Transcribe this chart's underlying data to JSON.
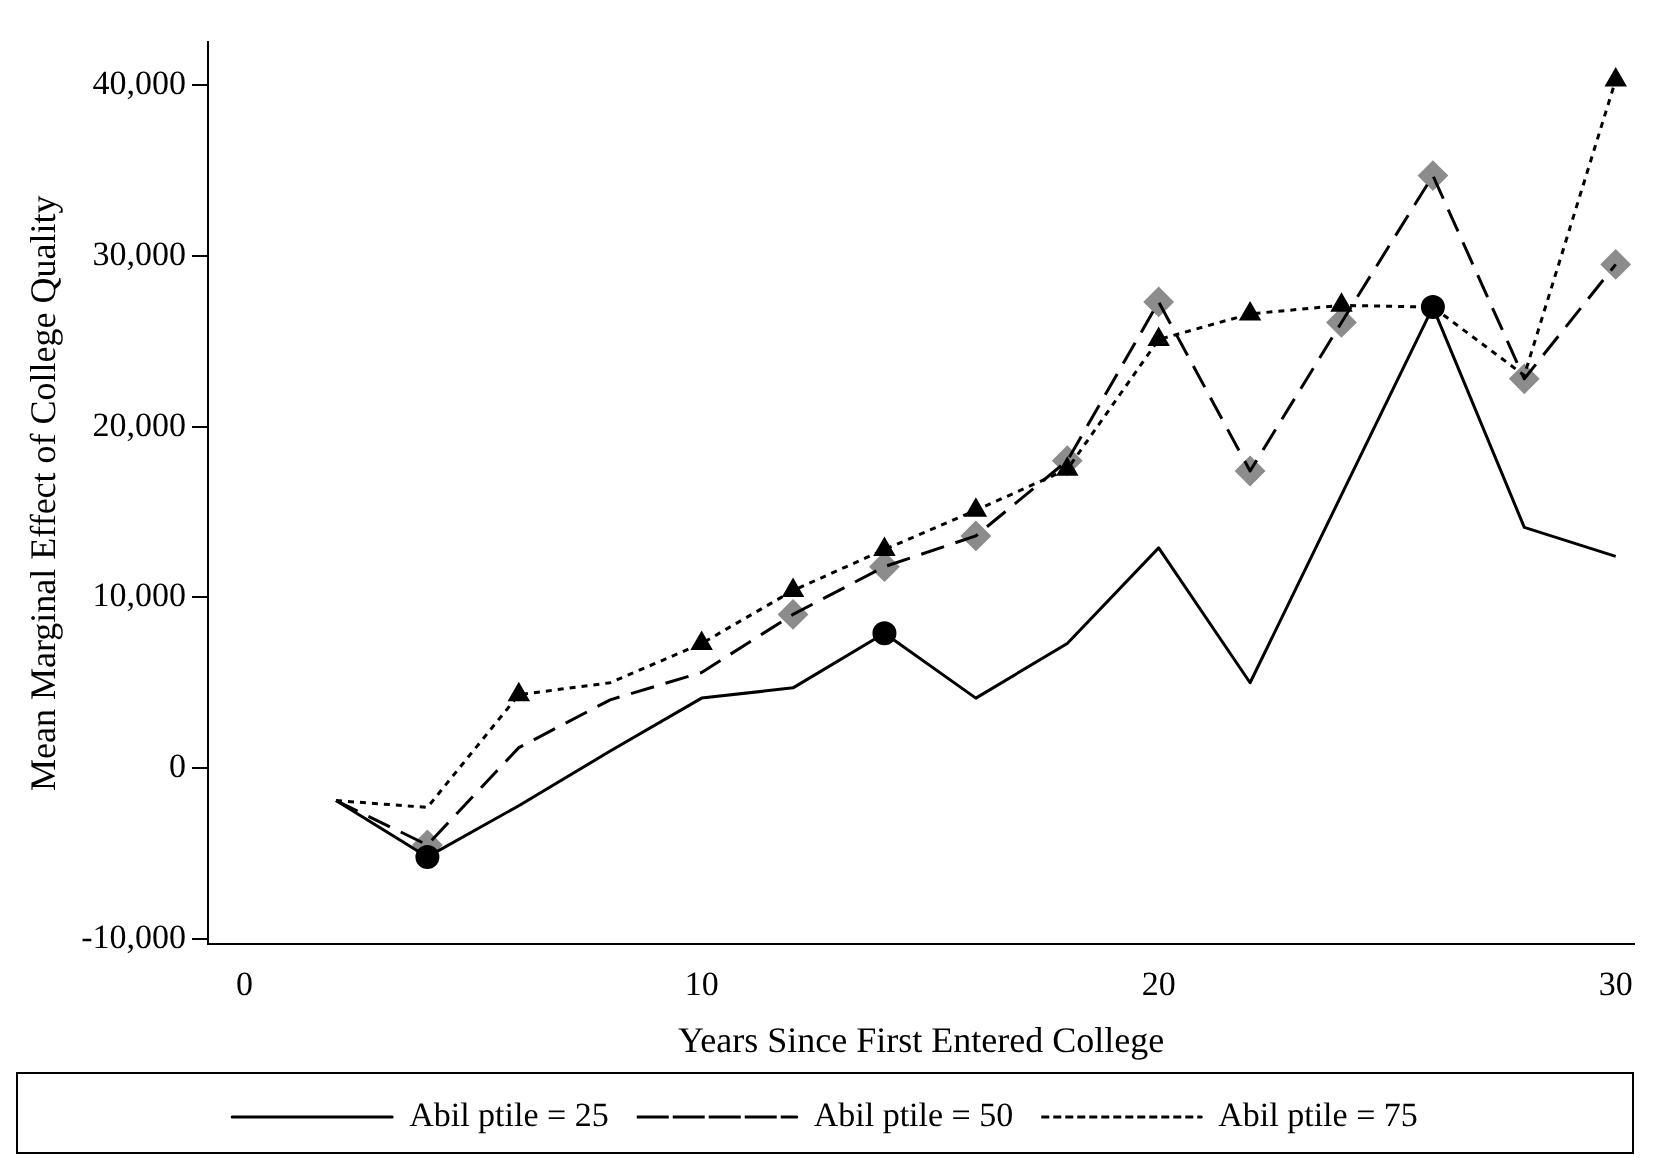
{
  "chart_data": {
    "type": "line",
    "xlabel": "Years Since First Entered College",
    "ylabel": "Mean Marginal Effect of College Quality",
    "x": [
      2,
      4,
      6,
      8,
      10,
      12,
      14,
      16,
      18,
      20,
      22,
      24,
      26,
      28,
      30
    ],
    "xlim": [
      -0.8,
      30.4
    ],
    "xticks": [
      0,
      10,
      20,
      30
    ],
    "ylim": [
      -10300,
      42500
    ],
    "yticks": [
      {
        "value": -10000,
        "label": "-10,000"
      },
      0,
      {
        "value": 10000,
        "label": "10,000"
      },
      {
        "value": 20000,
        "label": "20,000"
      },
      {
        "value": 30000,
        "label": "30,000"
      },
      {
        "value": 40000,
        "label": "40,000"
      }
    ],
    "grid": false,
    "legend": "bottom",
    "series": [
      {
        "name": "Abil ptile = 25",
        "color": "#000000",
        "line_style": "solid",
        "marker": "none",
        "values": [
          -1900,
          -5200,
          -2200,
          1000,
          4100,
          4700,
          7900,
          4100,
          7300,
          12900,
          5000,
          16000,
          27000,
          14100,
          12400
        ]
      },
      {
        "name": "Abil ptile = 50",
        "color": "#000000",
        "line_style": "dashed",
        "marker": "none",
        "values": [
          -1900,
          -4500,
          1200,
          4000,
          5600,
          9000,
          11800,
          13600,
          18000,
          27300,
          17400,
          26100,
          34700,
          22800,
          29500
        ]
      },
      {
        "name": "Abil ptile = 75",
        "color": "#000000",
        "line_style": "dotted",
        "marker": "none",
        "values": [
          -1900,
          -2300,
          4300,
          5000,
          7300,
          10400,
          12800,
          15100,
          17500,
          25100,
          26600,
          27100,
          27000,
          23000,
          40300
        ]
      },
      {
        "type": "scatter",
        "color": "#000000",
        "marker": "circle",
        "x": [
          4,
          14,
          26
        ],
        "values": [
          -5200,
          7900,
          27000
        ]
      },
      {
        "type": "scatter",
        "color": "#000000",
        "marker": "triangle",
        "x": [
          6,
          10,
          12,
          14,
          16,
          18,
          20,
          22,
          24,
          30
        ],
        "values": [
          4300,
          7300,
          10400,
          12800,
          15100,
          17500,
          25100,
          26600,
          27100,
          40300
        ]
      },
      {
        "type": "scatter",
        "color": "#8c8c8c",
        "marker": "diamond",
        "x": [
          4,
          12,
          14,
          16,
          18,
          20,
          22,
          24,
          26,
          28,
          30
        ],
        "values": [
          -4500,
          9000,
          11800,
          13600,
          18000,
          27300,
          17400,
          26100,
          34700,
          22800,
          29500
        ]
      }
    ]
  }
}
